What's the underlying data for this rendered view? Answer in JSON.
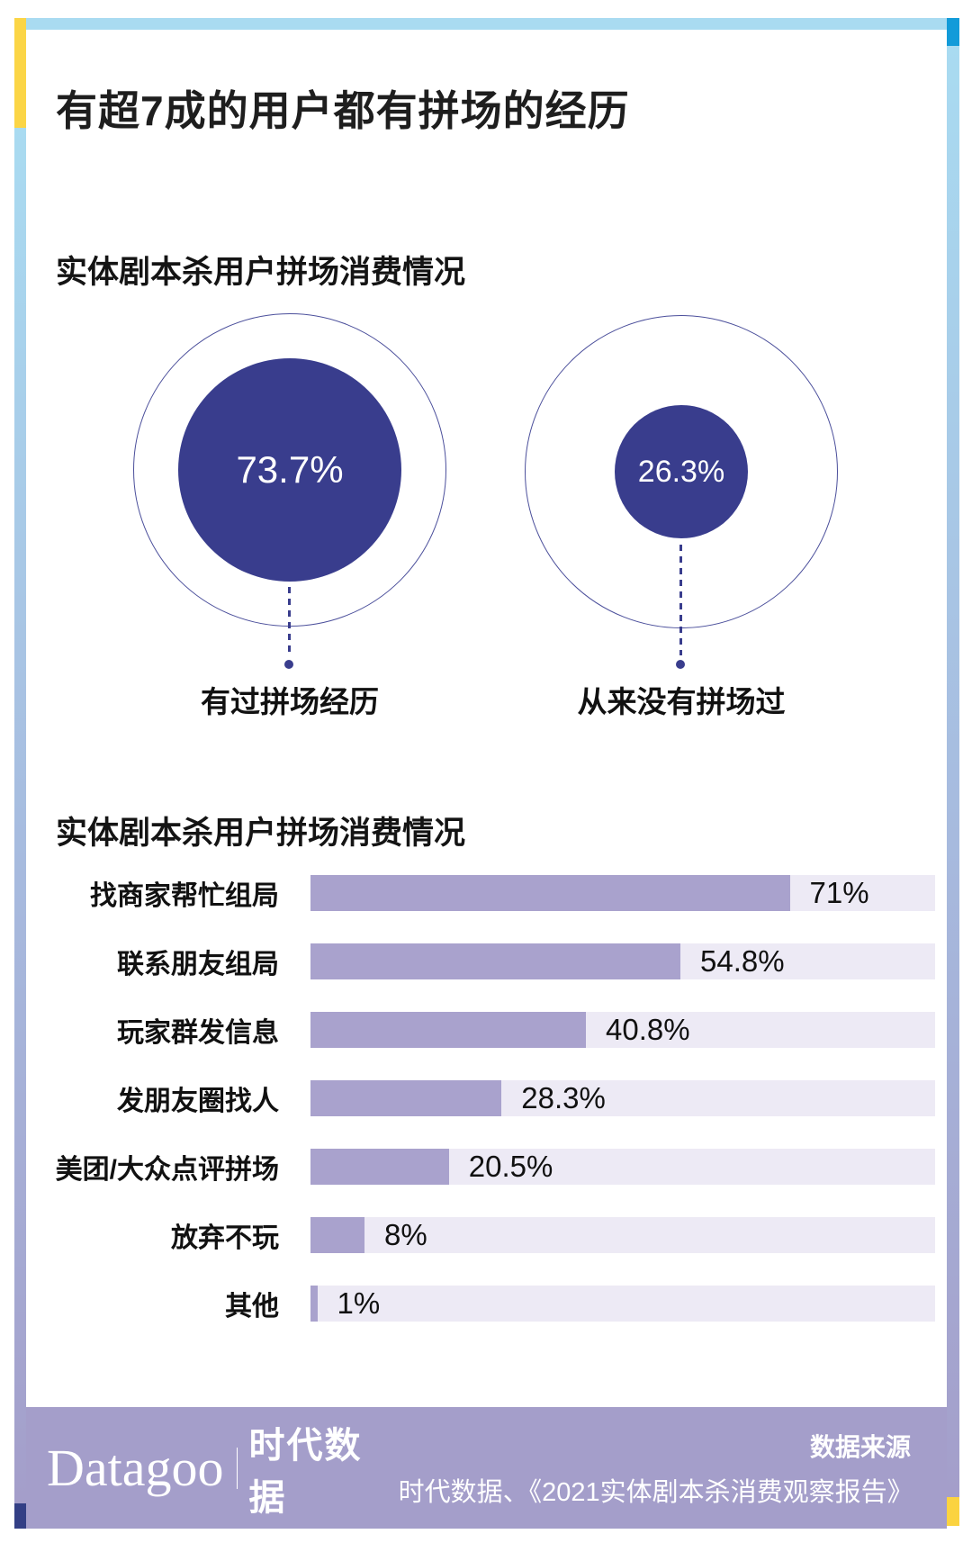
{
  "page": {
    "title": "有超7成的用户都有拼场的经历"
  },
  "donut_section": {
    "heading": "实体剧本杀用户拼场消费情况",
    "items": [
      {
        "value": "73.7%",
        "label": "有过拼场经历"
      },
      {
        "value": "26.3%",
        "label": "从来没有拼场过"
      }
    ]
  },
  "bar_section": {
    "heading": "实体剧本杀用户拼场消费情况",
    "rows": [
      {
        "label": "找商家帮忙组局",
        "value": 71,
        "display": "71%"
      },
      {
        "label": "联系朋友组局",
        "value": 54.8,
        "display": "54.8%"
      },
      {
        "label": "玩家群发信息",
        "value": 40.8,
        "display": "40.8%"
      },
      {
        "label": "发朋友圈找人",
        "value": 28.3,
        "display": "28.3%"
      },
      {
        "label": "美团/大众点评拼场",
        "value": 20.5,
        "display": "20.5%"
      },
      {
        "label": "放弃不玩",
        "value": 8,
        "display": "8%"
      },
      {
        "label": "其他",
        "value": 1,
        "display": "1%"
      }
    ]
  },
  "footer": {
    "logo_en": "Datagoo",
    "logo_cn": "时代数据",
    "source_label": "数据来源",
    "source_text": "时代数据、《2021实体剧本杀消费观察报告》"
  },
  "colors": {
    "navy_circle": "#393d8d",
    "circle_outline": "#4b4f9b",
    "bar_fill": "#a9a2cd",
    "bar_track": "#edeaf5",
    "footer_band": "#a49eca",
    "border_light_blue": "#a9dbf1",
    "border_dark_blue": "#129bd9",
    "border_yellow": "#fbd546",
    "border_navy": "#333f85"
  },
  "chart_data": [
    {
      "type": "pie",
      "title": "实体剧本杀用户拼场消费情况",
      "categories": [
        "有过拼场经历",
        "从来没有拼场过"
      ],
      "values": [
        73.7,
        26.3
      ],
      "unit": "%",
      "notes": "rendered as two proportional filled circles inside equal outline circles"
    },
    {
      "type": "bar",
      "title": "实体剧本杀用户拼场消费情况",
      "orientation": "horizontal",
      "categories": [
        "找商家帮忙组局",
        "联系朋友组局",
        "玩家群发信息",
        "发朋友圈找人",
        "美团/大众点评拼场",
        "放弃不玩",
        "其他"
      ],
      "values": [
        71,
        54.8,
        40.8,
        28.3,
        20.5,
        8,
        1
      ],
      "unit": "%",
      "xlabel": "",
      "ylabel": "",
      "xlim": [
        0,
        100
      ],
      "grid": false,
      "legend": false,
      "value_labels": [
        "71%",
        "54.8%",
        "40.8%",
        "28.3%",
        "20.5%",
        "8%",
        "1%"
      ]
    }
  ]
}
